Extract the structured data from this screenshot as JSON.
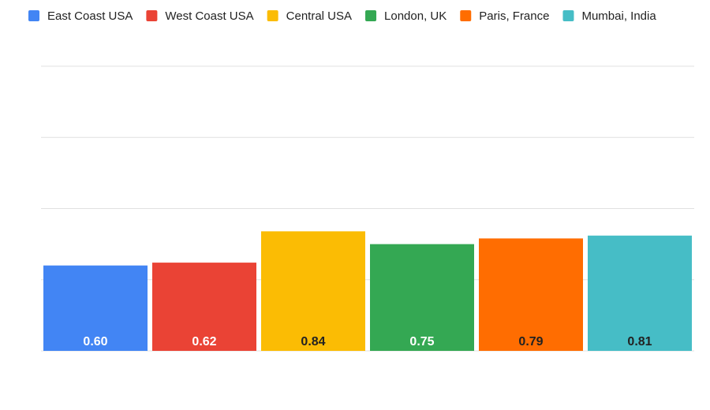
{
  "chart_data": {
    "type": "bar",
    "series": [
      {
        "name": "East Coast USA",
        "color": "#4285f4",
        "values": [
          0.6
        ],
        "value_labels": [
          "0.60"
        ]
      },
      {
        "name": "West Coast USA",
        "color": "#ea4335",
        "values": [
          0.62
        ],
        "value_labels": [
          "0.62"
        ]
      },
      {
        "name": "Central USA",
        "color": "#fbbc04",
        "values": [
          0.84
        ],
        "value_labels": [
          "0.84"
        ]
      },
      {
        "name": "London, UK",
        "color": "#34a853",
        "values": [
          0.75
        ],
        "value_labels": [
          "0.75"
        ]
      },
      {
        "name": "Paris, France",
        "color": "#ff6d01",
        "values": [
          0.79
        ],
        "value_labels": [
          "0.79"
        ]
      },
      {
        "name": "Mumbai, India",
        "color": "#46bdc6",
        "values": [
          0.81
        ],
        "value_labels": [
          "0.81"
        ]
      }
    ],
    "ylim": [
      0,
      2
    ],
    "yticks": [
      0,
      0.5,
      1,
      1.5,
      2
    ],
    "grid": true,
    "legend": "top"
  }
}
